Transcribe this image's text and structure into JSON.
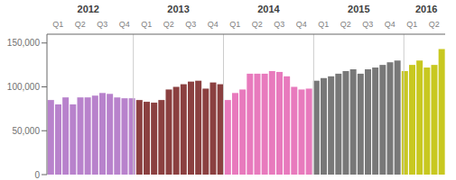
{
  "chart_data": {
    "type": "bar",
    "categories": [
      null,
      "Q1",
      null,
      null,
      "Q2",
      null,
      null,
      "Q3",
      null,
      null,
      "Q4",
      null,
      null,
      "Q1",
      null,
      null,
      "Q2",
      null,
      null,
      "Q3",
      null,
      null,
      "Q4",
      null,
      null,
      "Q1",
      null,
      null,
      "Q2",
      null,
      null,
      "Q3",
      null,
      null,
      "Q4",
      null,
      null,
      "Q1",
      null,
      null,
      "Q2",
      null,
      null,
      "Q3",
      null,
      null,
      "Q4",
      null,
      null,
      "Q1",
      null,
      null,
      "Q2",
      null
    ],
    "series": [
      {
        "name": "2012",
        "color": "#b882cc",
        "values": [
          85000,
          80000,
          88000,
          80000,
          88000,
          88000,
          90000,
          93000,
          92000,
          88000,
          87000,
          87000,
          null,
          null,
          null,
          null,
          null,
          null,
          null,
          null,
          null,
          null,
          null,
          null,
          null,
          null,
          null,
          null,
          null,
          null,
          null,
          null,
          null,
          null,
          null,
          null,
          null,
          null,
          null,
          null,
          null,
          null,
          null,
          null,
          null,
          null,
          null,
          null,
          null,
          null,
          null,
          null,
          null,
          null
        ]
      },
      {
        "name": "2013",
        "color": "#8b4040",
        "values": [
          null,
          null,
          null,
          null,
          null,
          null,
          null,
          null,
          null,
          null,
          null,
          null,
          85000,
          83000,
          82000,
          85000,
          97000,
          100000,
          103000,
          106000,
          107000,
          98000,
          105000,
          103000,
          null,
          null,
          null,
          null,
          null,
          null,
          null,
          null,
          null,
          null,
          null,
          null,
          null,
          null,
          null,
          null,
          null,
          null,
          null,
          null,
          null,
          null,
          null,
          null,
          null,
          null,
          null,
          null,
          null,
          null
        ]
      },
      {
        "name": "2014",
        "color": "#e87abd",
        "values": [
          null,
          null,
          null,
          null,
          null,
          null,
          null,
          null,
          null,
          null,
          null,
          null,
          null,
          null,
          null,
          null,
          null,
          null,
          null,
          null,
          null,
          null,
          null,
          null,
          85000,
          93000,
          97000,
          115000,
          115000,
          115000,
          118000,
          117000,
          112000,
          100000,
          97000,
          98000,
          null,
          null,
          null,
          null,
          null,
          null,
          null,
          null,
          null,
          null,
          null,
          null,
          null,
          null,
          null,
          null,
          null,
          null
        ]
      },
      {
        "name": "2015",
        "color": "#787878",
        "values": [
          null,
          null,
          null,
          null,
          null,
          null,
          null,
          null,
          null,
          null,
          null,
          null,
          null,
          null,
          null,
          null,
          null,
          null,
          null,
          null,
          null,
          null,
          null,
          null,
          null,
          null,
          null,
          null,
          null,
          null,
          null,
          null,
          null,
          null,
          null,
          null,
          107000,
          110000,
          112000,
          115000,
          118000,
          120000,
          115000,
          120000,
          122000,
          125000,
          128000,
          130000,
          null,
          null,
          null,
          null,
          null,
          null
        ]
      },
      {
        "name": "2016",
        "color": "#c8c820",
        "values": [
          null,
          null,
          null,
          null,
          null,
          null,
          null,
          null,
          null,
          null,
          null,
          null,
          null,
          null,
          null,
          null,
          null,
          null,
          null,
          null,
          null,
          null,
          null,
          null,
          null,
          null,
          null,
          null,
          null,
          null,
          null,
          null,
          null,
          null,
          null,
          null,
          null,
          null,
          null,
          null,
          null,
          null,
          null,
          null,
          null,
          null,
          null,
          null,
          118000,
          125000,
          130000,
          122000,
          125000,
          143000
        ]
      }
    ],
    "ylim": [
      0,
      160000
    ],
    "yticks": [
      0,
      {
        "value": 50000,
        "label": "50,000"
      },
      {
        "value": 100000,
        "label": "100,000"
      },
      {
        "value": 150000,
        "label": "150,000"
      }
    ]
  }
}
